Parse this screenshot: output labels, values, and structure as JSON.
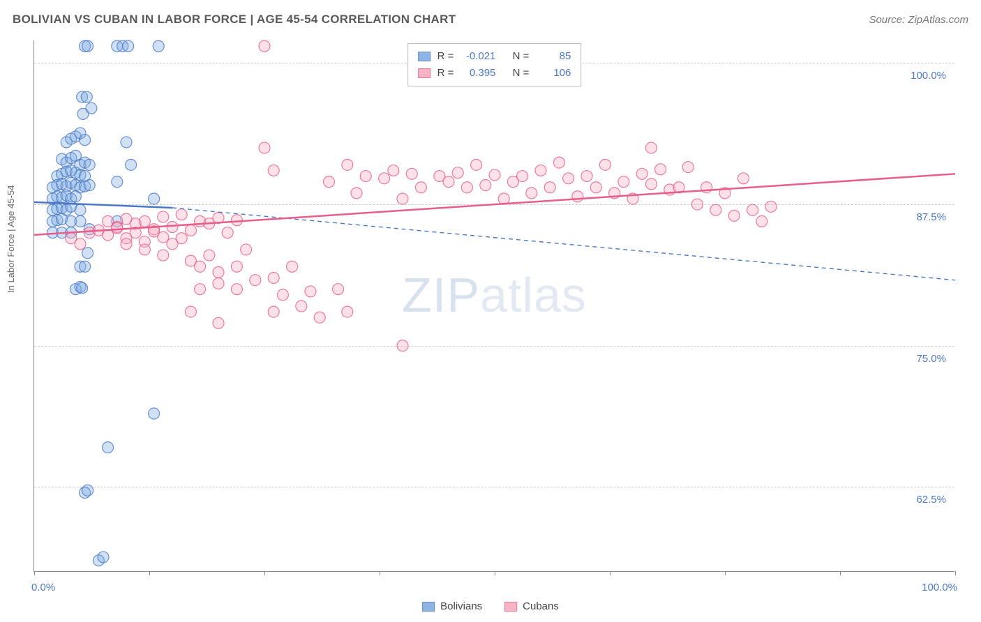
{
  "title": "BOLIVIAN VS CUBAN IN LABOR FORCE | AGE 45-54 CORRELATION CHART",
  "source": "Source: ZipAtlas.com",
  "watermark_a": "ZIP",
  "watermark_b": "atlas",
  "y_axis_title": "In Labor Force | Age 45-54",
  "chart": {
    "type": "scatter",
    "background_color": "#ffffff",
    "grid_color": "#cccccc",
    "axis_color": "#888888",
    "text_color": "#5a5a5a",
    "value_color": "#4a78c8",
    "xlim": [
      0,
      100
    ],
    "ylim": [
      55,
      102
    ],
    "x_ticks": [
      0,
      12.5,
      25,
      37.5,
      50,
      62.5,
      75,
      87.5,
      100
    ],
    "x_tick_labels": {
      "0": "0.0%",
      "100": "100.0%"
    },
    "y_gridlines": [
      62.5,
      75,
      87.5,
      100
    ],
    "y_tick_labels": {
      "62.5": "62.5%",
      "75": "75.0%",
      "87.5": "87.5%",
      "100": "100.0%"
    },
    "marker_radius": 8,
    "marker_opacity": 0.35,
    "line_width": 2.5,
    "dash_pattern": "6 5",
    "series": {
      "bolivians": {
        "label": "Bolivians",
        "fill_color": "#7ba8e0",
        "stroke_color": "#4a78c8",
        "R": "-0.021",
        "N": "85",
        "trend": {
          "x0": 0,
          "y0": 87.7,
          "x1": 15,
          "y1": 87.2,
          "dash_x1": 100,
          "dash_y1": 80.8
        },
        "points": [
          [
            5.5,
            101.5
          ],
          [
            5.8,
            101.5
          ],
          [
            9,
            101.5
          ],
          [
            9.6,
            101.5
          ],
          [
            10.2,
            101.5
          ],
          [
            13.5,
            101.5
          ],
          [
            5.2,
            97
          ],
          [
            5.7,
            97
          ],
          [
            6.2,
            96
          ],
          [
            5.3,
            95.5
          ],
          [
            3.5,
            93
          ],
          [
            4,
            93.3
          ],
          [
            4.5,
            93.5
          ],
          [
            5,
            93.8
          ],
          [
            5.5,
            93.2
          ],
          [
            10,
            93
          ],
          [
            3,
            91.5
          ],
          [
            3.5,
            91.2
          ],
          [
            4,
            91.6
          ],
          [
            4.5,
            91.8
          ],
          [
            5,
            91
          ],
          [
            5.5,
            91.2
          ],
          [
            6,
            91
          ],
          [
            2.5,
            90
          ],
          [
            3,
            90.2
          ],
          [
            3.5,
            90.4
          ],
          [
            4,
            90.5
          ],
          [
            4.5,
            90.3
          ],
          [
            5,
            90.1
          ],
          [
            5.5,
            90
          ],
          [
            10.5,
            91
          ],
          [
            2,
            89
          ],
          [
            2.5,
            89.2
          ],
          [
            3,
            89.3
          ],
          [
            3.5,
            89.1
          ],
          [
            4,
            89.4
          ],
          [
            4.5,
            89.2
          ],
          [
            5,
            89
          ],
          [
            5.5,
            89.1
          ],
          [
            6,
            89.2
          ],
          [
            9,
            89.5
          ],
          [
            2,
            88
          ],
          [
            2.5,
            88.2
          ],
          [
            3,
            88.1
          ],
          [
            3.5,
            88.3
          ],
          [
            4,
            88
          ],
          [
            4.5,
            88.2
          ],
          [
            13,
            88
          ],
          [
            2,
            87
          ],
          [
            2.5,
            87.1
          ],
          [
            3,
            87.2
          ],
          [
            3.5,
            87
          ],
          [
            4,
            87.3
          ],
          [
            5,
            87
          ],
          [
            2,
            86
          ],
          [
            2.5,
            86.1
          ],
          [
            3,
            86.2
          ],
          [
            4,
            86
          ],
          [
            5,
            86
          ],
          [
            9,
            86
          ],
          [
            2,
            85
          ],
          [
            3,
            85
          ],
          [
            4,
            85
          ],
          [
            5.8,
            83.2
          ],
          [
            6,
            85.3
          ],
          [
            5,
            82
          ],
          [
            5.5,
            82
          ],
          [
            4.5,
            80
          ],
          [
            5,
            80.2
          ],
          [
            5.2,
            80.1
          ],
          [
            13,
            69
          ],
          [
            8,
            66
          ],
          [
            5.5,
            62
          ],
          [
            5.8,
            62.2
          ],
          [
            7,
            56
          ],
          [
            7.5,
            56.3
          ]
        ]
      },
      "cubans": {
        "label": "Cubans",
        "fill_color": "#f5a8bc",
        "stroke_color": "#e85d8a",
        "R": "0.395",
        "N": "106",
        "trend": {
          "x0": 0,
          "y0": 84.8,
          "x1": 100,
          "y1": 90.2
        },
        "points": [
          [
            25,
            101.5
          ],
          [
            25,
            92.5
          ],
          [
            67,
            92.5
          ],
          [
            26,
            90.5
          ],
          [
            32,
            89.5
          ],
          [
            34,
            91
          ],
          [
            35,
            88.5
          ],
          [
            36,
            90
          ],
          [
            38,
            89.8
          ],
          [
            39,
            90.5
          ],
          [
            40,
            88
          ],
          [
            41,
            90.2
          ],
          [
            42,
            89
          ],
          [
            44,
            90
          ],
          [
            45,
            89.5
          ],
          [
            46,
            90.3
          ],
          [
            47,
            89
          ],
          [
            48,
            91
          ],
          [
            49,
            89.2
          ],
          [
            50,
            90.1
          ],
          [
            51,
            88
          ],
          [
            52,
            89.5
          ],
          [
            53,
            90
          ],
          [
            54,
            88.5
          ],
          [
            55,
            90.5
          ],
          [
            56,
            89
          ],
          [
            57,
            91.2
          ],
          [
            58,
            89.8
          ],
          [
            59,
            88.2
          ],
          [
            60,
            90
          ],
          [
            61,
            89
          ],
          [
            62,
            91
          ],
          [
            63,
            88.5
          ],
          [
            64,
            89.5
          ],
          [
            65,
            88
          ],
          [
            66,
            90.2
          ],
          [
            67,
            89.3
          ],
          [
            68,
            90.6
          ],
          [
            69,
            88.8
          ],
          [
            70,
            89
          ],
          [
            71,
            90.8
          ],
          [
            72,
            87.5
          ],
          [
            73,
            89
          ],
          [
            74,
            87
          ],
          [
            75,
            88.5
          ],
          [
            76,
            86.5
          ],
          [
            77,
            89.8
          ],
          [
            78,
            87
          ],
          [
            79,
            86
          ],
          [
            80,
            87.3
          ],
          [
            8,
            86
          ],
          [
            9,
            85.5
          ],
          [
            10,
            86.2
          ],
          [
            11,
            85.8
          ],
          [
            12,
            86
          ],
          [
            13,
            85.3
          ],
          [
            14,
            86.4
          ],
          [
            15,
            85.5
          ],
          [
            16,
            86.6
          ],
          [
            17,
            85.2
          ],
          [
            18,
            86
          ],
          [
            19,
            85.8
          ],
          [
            20,
            86.3
          ],
          [
            21,
            85
          ],
          [
            22,
            86.1
          ],
          [
            6,
            85
          ],
          [
            7,
            85.2
          ],
          [
            8,
            84.8
          ],
          [
            9,
            85.4
          ],
          [
            10,
            84.5
          ],
          [
            11,
            85
          ],
          [
            12,
            84.2
          ],
          [
            13,
            85.1
          ],
          [
            14,
            84.6
          ],
          [
            15,
            84
          ],
          [
            16,
            84.5
          ],
          [
            4,
            84.5
          ],
          [
            5,
            84
          ],
          [
            14,
            83
          ],
          [
            17,
            82.5
          ],
          [
            18,
            82
          ],
          [
            19,
            83
          ],
          [
            20,
            81.5
          ],
          [
            22,
            82
          ],
          [
            23,
            83.5
          ],
          [
            26,
            81
          ],
          [
            28,
            82
          ],
          [
            18,
            80
          ],
          [
            20,
            80.5
          ],
          [
            22,
            80
          ],
          [
            24,
            80.8
          ],
          [
            27,
            79.5
          ],
          [
            30,
            79.8
          ],
          [
            33,
            80
          ],
          [
            17,
            78
          ],
          [
            20,
            77
          ],
          [
            26,
            78
          ],
          [
            29,
            78.5
          ],
          [
            31,
            77.5
          ],
          [
            34,
            78
          ],
          [
            40,
            75
          ],
          [
            10,
            84
          ],
          [
            12,
            83.5
          ]
        ]
      }
    }
  },
  "stats_labels": {
    "R": "R =",
    "N": "N ="
  },
  "legend": {
    "a": "Bolivians",
    "b": "Cubans"
  }
}
